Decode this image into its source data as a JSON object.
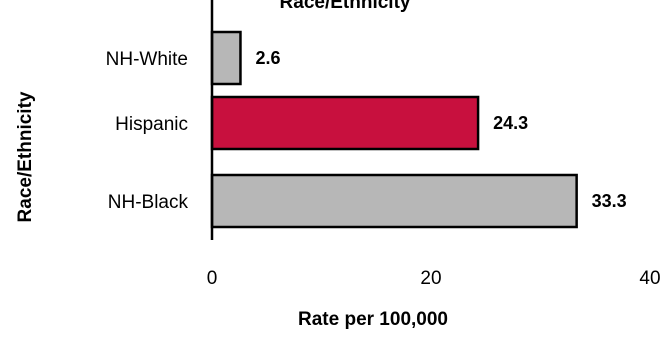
{
  "chart_data": {
    "type": "bar",
    "orientation": "horizontal",
    "title": "Race/Ethnicity",
    "categories": [
      "NH-White",
      "Hispanic",
      "NH-Black"
    ],
    "values": [
      2.6,
      24.3,
      33.3
    ],
    "value_labels": [
      "2.6",
      "24.3",
      "33.3"
    ],
    "bar_colors": [
      "#b7b7b7",
      "#c8103e",
      "#b7b7b7"
    ],
    "bar_stroke": "#000000",
    "xlabel": "Rate per 100,000",
    "ylabel": "Race/Ethnicity",
    "xlim": [
      0,
      40
    ],
    "x_ticks": [
      0,
      20,
      40
    ],
    "x_tick_labels": [
      "0",
      "20",
      "40"
    ],
    "grid": false,
    "legend": "none"
  }
}
